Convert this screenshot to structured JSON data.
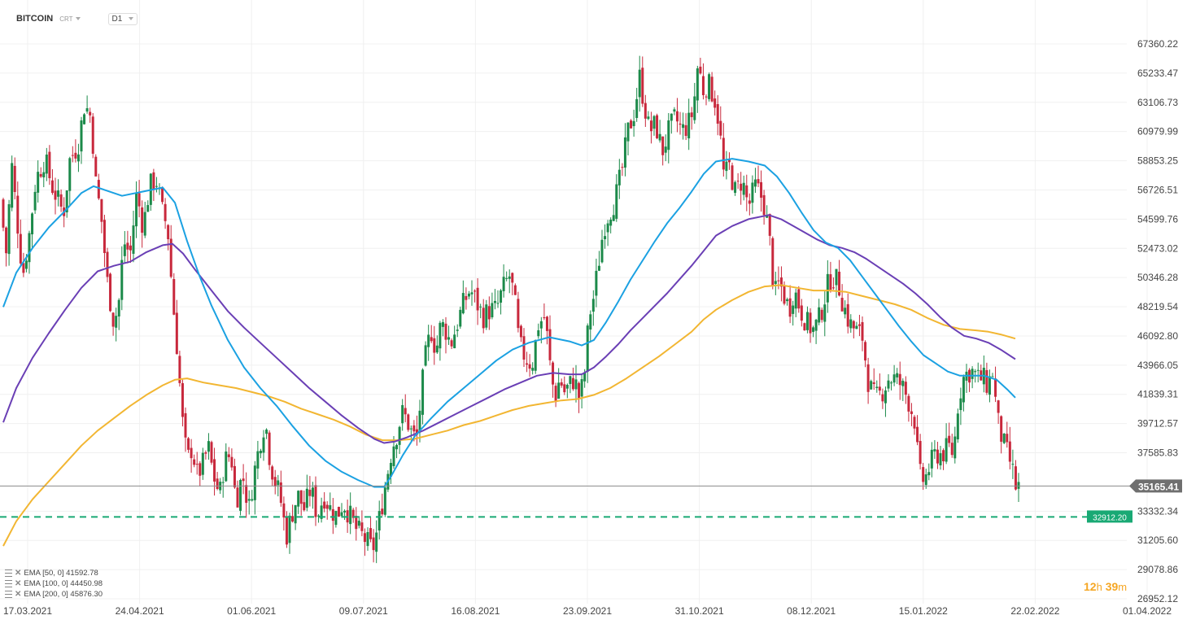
{
  "header": {
    "symbol": "BITCOIN",
    "type": "CRT",
    "timeframe": "D1"
  },
  "legend": [
    {
      "label": "EMA [50, 0] 41592.78",
      "color": "#1ba1e2"
    },
    {
      "label": "EMA [100, 0] 44450.98",
      "color": "#6a3fb5"
    },
    {
      "label": "EMA [200, 0] 45876.30",
      "color": "#f2b632"
    }
  ],
  "timer": {
    "h": "12",
    "h_unit": "h",
    "m": "39",
    "m_unit": "m"
  },
  "chart_data": {
    "type": "candlestick",
    "title": "",
    "y_ticks": [
      "67360.22",
      "65233.47",
      "63106.73",
      "60979.99",
      "58853.25",
      "56726.51",
      "54599.76",
      "52473.02",
      "50346.28",
      "48219.54",
      "46092.80",
      "43966.05",
      "41839.31",
      "39712.57",
      "37585.83",
      "33332.34",
      "31205.60",
      "29078.86",
      "26952.12"
    ],
    "x_ticks": [
      "17.03.2021",
      "24.04.2021",
      "01.06.2021",
      "09.07.2021",
      "16.08.2021",
      "23.09.2021",
      "31.10.2021",
      "08.12.2021",
      "15.01.2022",
      "22.02.2022",
      "01.04.2022"
    ],
    "ylim": [
      26300,
      68900
    ],
    "current_price": "35165.41",
    "current_price_value": 35165.41,
    "support_level": "32912.20",
    "support_level_value": 32912.2,
    "colors": {
      "up": "#1c8a4a",
      "down": "#c8283c",
      "ema50": "#1ba1e2",
      "ema100": "#6a3fb5",
      "ema200": "#f2b632",
      "support": "#19a974",
      "price_line": "#8a8a8a"
    },
    "close_path": [
      [
        0,
        56000
      ],
      [
        8,
        52000
      ],
      [
        14,
        58800
      ],
      [
        22,
        54000
      ],
      [
        28,
        50500
      ],
      [
        36,
        53500
      ],
      [
        44,
        57500
      ],
      [
        55,
        59000
      ],
      [
        64,
        57000
      ],
      [
        78,
        55000
      ],
      [
        86,
        59000
      ],
      [
        96,
        60000
      ],
      [
        104,
        63000
      ],
      [
        112,
        62000
      ],
      [
        118,
        57000
      ],
      [
        124,
        55000
      ],
      [
        132,
        50000
      ],
      [
        140,
        47000
      ],
      [
        146,
        48500
      ],
      [
        152,
        53000
      ],
      [
        160,
        52000
      ],
      [
        168,
        56500
      ],
      [
        176,
        54000
      ],
      [
        184,
        57000
      ],
      [
        192,
        57500
      ],
      [
        200,
        55000
      ],
      [
        206,
        54000
      ],
      [
        212,
        49000
      ],
      [
        218,
        45000
      ],
      [
        224,
        40000
      ],
      [
        230,
        37000
      ],
      [
        236,
        38000
      ],
      [
        242,
        36000
      ],
      [
        248,
        36500
      ],
      [
        256,
        38000
      ],
      [
        262,
        36000
      ],
      [
        270,
        34500
      ],
      [
        276,
        37000
      ],
      [
        284,
        37500
      ],
      [
        290,
        34000
      ],
      [
        298,
        36000
      ],
      [
        306,
        33500
      ],
      [
        312,
        36000
      ],
      [
        320,
        38500
      ],
      [
        326,
        40000
      ],
      [
        332,
        37000
      ],
      [
        338,
        35500
      ],
      [
        344,
        34500
      ],
      [
        352,
        31500
      ],
      [
        358,
        33000
      ],
      [
        366,
        34500
      ],
      [
        374,
        33500
      ],
      [
        382,
        35000
      ],
      [
        390,
        33000
      ],
      [
        398,
        34500
      ],
      [
        406,
        33500
      ],
      [
        414,
        33000
      ],
      [
        422,
        34000
      ],
      [
        430,
        33000
      ],
      [
        438,
        32000
      ],
      [
        446,
        31500
      ],
      [
        452,
        31000
      ],
      [
        458,
        30500
      ],
      [
        464,
        32000
      ],
      [
        470,
        34000
      ],
      [
        476,
        36000
      ],
      [
        482,
        38000
      ],
      [
        488,
        39000
      ],
      [
        494,
        40500
      ],
      [
        500,
        40000
      ],
      [
        506,
        39000
      ],
      [
        512,
        38500
      ],
      [
        518,
        42000
      ],
      [
        524,
        45000
      ],
      [
        530,
        46500
      ],
      [
        536,
        45000
      ],
      [
        542,
        47000
      ],
      [
        548,
        46500
      ],
      [
        554,
        45500
      ],
      [
        562,
        47000
      ],
      [
        570,
        48500
      ],
      [
        578,
        49500
      ],
      [
        586,
        48500
      ],
      [
        594,
        47500
      ],
      [
        602,
        48000
      ],
      [
        610,
        48000
      ],
      [
        618,
        49500
      ],
      [
        626,
        50500
      ],
      [
        632,
        49000
      ],
      [
        638,
        45500
      ],
      [
        646,
        44500
      ],
      [
        654,
        44000
      ],
      [
        662,
        47000
      ],
      [
        670,
        47500
      ],
      [
        676,
        44000
      ],
      [
        682,
        41500
      ],
      [
        688,
        43000
      ],
      [
        694,
        42000
      ],
      [
        700,
        42500
      ],
      [
        706,
        43000
      ],
      [
        712,
        41500
      ],
      [
        718,
        43000
      ],
      [
        724,
        47500
      ],
      [
        730,
        49000
      ],
      [
        736,
        51500
      ],
      [
        742,
        54000
      ],
      [
        748,
        55000
      ],
      [
        756,
        56000
      ],
      [
        764,
        58000
      ],
      [
        772,
        61000
      ],
      [
        780,
        62500
      ],
      [
        786,
        65000
      ],
      [
        792,
        63000
      ],
      [
        798,
        61000
      ],
      [
        806,
        61500
      ],
      [
        814,
        59500
      ],
      [
        822,
        61000
      ],
      [
        830,
        62000
      ],
      [
        838,
        61000
      ],
      [
        846,
        61500
      ],
      [
        852,
        62500
      ],
      [
        858,
        66000
      ],
      [
        864,
        64000
      ],
      [
        870,
        64500
      ],
      [
        878,
        63500
      ],
      [
        884,
        61500
      ],
      [
        890,
        57500
      ],
      [
        896,
        58500
      ],
      [
        904,
        56500
      ],
      [
        912,
        57500
      ],
      [
        920,
        55500
      ],
      [
        928,
        57000
      ],
      [
        934,
        56500
      ],
      [
        940,
        55500
      ],
      [
        946,
        53000
      ],
      [
        952,
        49000
      ],
      [
        958,
        50000
      ],
      [
        964,
        49000
      ],
      [
        970,
        48000
      ],
      [
        976,
        49500
      ],
      [
        984,
        48000
      ],
      [
        992,
        47000
      ],
      [
        1000,
        46500
      ],
      [
        1008,
        47500
      ],
      [
        1016,
        49500
      ],
      [
        1022,
        50500
      ],
      [
        1030,
        50000
      ],
      [
        1036,
        48500
      ],
      [
        1044,
        47000
      ],
      [
        1052,
        46500
      ],
      [
        1060,
        46000
      ],
      [
        1068,
        42500
      ],
      [
        1076,
        41500
      ],
      [
        1084,
        42000
      ],
      [
        1092,
        43000
      ],
      [
        1100,
        43000
      ],
      [
        1108,
        42500
      ],
      [
        1116,
        41500
      ],
      [
        1124,
        40000
      ],
      [
        1130,
        36000
      ],
      [
        1136,
        35500
      ],
      [
        1142,
        36500
      ],
      [
        1150,
        37500
      ],
      [
        1158,
        37500
      ],
      [
        1166,
        38000
      ],
      [
        1172,
        37500
      ],
      [
        1178,
        41500
      ],
      [
        1184,
        43000
      ],
      [
        1190,
        43500
      ],
      [
        1196,
        43500
      ],
      [
        1202,
        43000
      ],
      [
        1208,
        43000
      ],
      [
        1214,
        42500
      ],
      [
        1220,
        43500
      ],
      [
        1226,
        40000
      ],
      [
        1232,
        38500
      ],
      [
        1238,
        37500
      ],
      [
        1244,
        36500
      ],
      [
        1248,
        35100
      ]
    ],
    "ema50": [
      [
        4,
        48200
      ],
      [
        20,
        50700
      ],
      [
        40,
        52500
      ],
      [
        60,
        54000
      ],
      [
        80,
        55200
      ],
      [
        100,
        56500
      ],
      [
        115,
        57000
      ],
      [
        130,
        56700
      ],
      [
        150,
        56300
      ],
      [
        175,
        56600
      ],
      [
        200,
        56900
      ],
      [
        215,
        55800
      ],
      [
        230,
        53000
      ],
      [
        245,
        50500
      ],
      [
        260,
        48300
      ],
      [
        280,
        45800
      ],
      [
        300,
        43800
      ],
      [
        320,
        42300
      ],
      [
        340,
        41000
      ],
      [
        360,
        39500
      ],
      [
        380,
        38100
      ],
      [
        400,
        37000
      ],
      [
        420,
        36200
      ],
      [
        440,
        35600
      ],
      [
        460,
        35100
      ],
      [
        472,
        35100
      ],
      [
        480,
        35800
      ],
      [
        495,
        37400
      ],
      [
        510,
        38800
      ],
      [
        530,
        40100
      ],
      [
        550,
        41300
      ],
      [
        570,
        42300
      ],
      [
        590,
        43300
      ],
      [
        610,
        44300
      ],
      [
        630,
        45100
      ],
      [
        650,
        45600
      ],
      [
        675,
        46000
      ],
      [
        700,
        45700
      ],
      [
        715,
        45400
      ],
      [
        730,
        45800
      ],
      [
        745,
        47100
      ],
      [
        760,
        48600
      ],
      [
        775,
        50200
      ],
      [
        790,
        51600
      ],
      [
        805,
        53000
      ],
      [
        820,
        54300
      ],
      [
        835,
        55400
      ],
      [
        850,
        56600
      ],
      [
        865,
        57900
      ],
      [
        880,
        58800
      ],
      [
        900,
        59000
      ],
      [
        920,
        58800
      ],
      [
        940,
        58500
      ],
      [
        955,
        57700
      ],
      [
        970,
        56500
      ],
      [
        985,
        55100
      ],
      [
        1000,
        53800
      ],
      [
        1015,
        52900
      ],
      [
        1030,
        52500
      ],
      [
        1045,
        51600
      ],
      [
        1060,
        50400
      ],
      [
        1075,
        49200
      ],
      [
        1090,
        48000
      ],
      [
        1105,
        46800
      ],
      [
        1120,
        45700
      ],
      [
        1135,
        44700
      ],
      [
        1150,
        44100
      ],
      [
        1165,
        43500
      ],
      [
        1180,
        43200
      ],
      [
        1195,
        43200
      ],
      [
        1210,
        43200
      ],
      [
        1225,
        42900
      ],
      [
        1238,
        42200
      ],
      [
        1248,
        41600
      ]
    ],
    "ema100": [
      [
        4,
        39800
      ],
      [
        20,
        42300
      ],
      [
        40,
        44500
      ],
      [
        60,
        46300
      ],
      [
        80,
        48000
      ],
      [
        100,
        49600
      ],
      [
        120,
        50800
      ],
      [
        140,
        51200
      ],
      [
        160,
        51500
      ],
      [
        180,
        52200
      ],
      [
        200,
        52700
      ],
      [
        212,
        52800
      ],
      [
        225,
        52100
      ],
      [
        240,
        50900
      ],
      [
        260,
        49400
      ],
      [
        280,
        47900
      ],
      [
        300,
        46700
      ],
      [
        320,
        45600
      ],
      [
        340,
        44500
      ],
      [
        360,
        43400
      ],
      [
        380,
        42300
      ],
      [
        400,
        41300
      ],
      [
        420,
        40300
      ],
      [
        440,
        39400
      ],
      [
        460,
        38600
      ],
      [
        472,
        38300
      ],
      [
        485,
        38400
      ],
      [
        500,
        38700
      ],
      [
        520,
        39200
      ],
      [
        540,
        39800
      ],
      [
        560,
        40400
      ],
      [
        580,
        41000
      ],
      [
        600,
        41600
      ],
      [
        620,
        42200
      ],
      [
        640,
        42700
      ],
      [
        660,
        43200
      ],
      [
        680,
        43400
      ],
      [
        700,
        43300
      ],
      [
        715,
        43300
      ],
      [
        730,
        43800
      ],
      [
        745,
        44600
      ],
      [
        760,
        45500
      ],
      [
        775,
        46500
      ],
      [
        790,
        47400
      ],
      [
        805,
        48300
      ],
      [
        820,
        49200
      ],
      [
        835,
        50200
      ],
      [
        850,
        51200
      ],
      [
        865,
        52300
      ],
      [
        880,
        53400
      ],
      [
        900,
        54100
      ],
      [
        920,
        54600
      ],
      [
        945,
        54900
      ],
      [
        960,
        54600
      ],
      [
        975,
        54100
      ],
      [
        990,
        53600
      ],
      [
        1005,
        53100
      ],
      [
        1020,
        52700
      ],
      [
        1035,
        52500
      ],
      [
        1050,
        52200
      ],
      [
        1065,
        51700
      ],
      [
        1080,
        51100
      ],
      [
        1095,
        50500
      ],
      [
        1110,
        49900
      ],
      [
        1125,
        49200
      ],
      [
        1140,
        48400
      ],
      [
        1155,
        47500
      ],
      [
        1170,
        46700
      ],
      [
        1185,
        46100
      ],
      [
        1200,
        45900
      ],
      [
        1215,
        45600
      ],
      [
        1230,
        45100
      ],
      [
        1248,
        44400
      ]
    ],
    "ema200": [
      [
        4,
        30800
      ],
      [
        20,
        32600
      ],
      [
        40,
        34200
      ],
      [
        60,
        35500
      ],
      [
        80,
        36800
      ],
      [
        100,
        38100
      ],
      [
        120,
        39200
      ],
      [
        140,
        40100
      ],
      [
        160,
        41000
      ],
      [
        180,
        41800
      ],
      [
        200,
        42500
      ],
      [
        215,
        42900
      ],
      [
        230,
        43000
      ],
      [
        250,
        42700
      ],
      [
        270,
        42500
      ],
      [
        290,
        42300
      ],
      [
        310,
        42000
      ],
      [
        330,
        41700
      ],
      [
        350,
        41300
      ],
      [
        370,
        40800
      ],
      [
        390,
        40400
      ],
      [
        410,
        40000
      ],
      [
        430,
        39500
      ],
      [
        450,
        38900
      ],
      [
        470,
        38500
      ],
      [
        490,
        38500
      ],
      [
        510,
        38600
      ],
      [
        530,
        38900
      ],
      [
        550,
        39200
      ],
      [
        570,
        39600
      ],
      [
        590,
        39900
      ],
      [
        610,
        40300
      ],
      [
        630,
        40700
      ],
      [
        650,
        41000
      ],
      [
        670,
        41200
      ],
      [
        690,
        41400
      ],
      [
        710,
        41500
      ],
      [
        730,
        41800
      ],
      [
        750,
        42300
      ],
      [
        770,
        43000
      ],
      [
        790,
        43800
      ],
      [
        810,
        44600
      ],
      [
        830,
        45500
      ],
      [
        850,
        46400
      ],
      [
        865,
        47300
      ],
      [
        880,
        48000
      ],
      [
        900,
        48700
      ],
      [
        920,
        49300
      ],
      [
        940,
        49700
      ],
      [
        960,
        49800
      ],
      [
        980,
        49600
      ],
      [
        1000,
        49400
      ],
      [
        1020,
        49400
      ],
      [
        1040,
        49300
      ],
      [
        1060,
        49000
      ],
      [
        1080,
        48700
      ],
      [
        1100,
        48400
      ],
      [
        1120,
        48000
      ],
      [
        1140,
        47400
      ],
      [
        1160,
        46900
      ],
      [
        1180,
        46600
      ],
      [
        1200,
        46500
      ],
      [
        1215,
        46400
      ],
      [
        1230,
        46200
      ],
      [
        1248,
        45900
      ]
    ]
  }
}
